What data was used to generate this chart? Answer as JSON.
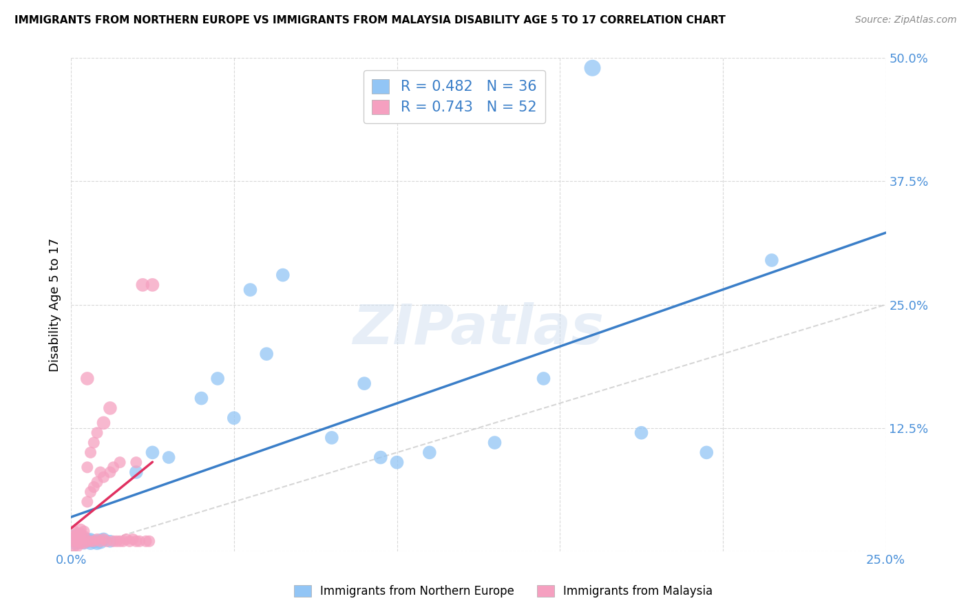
{
  "title": "IMMIGRANTS FROM NORTHERN EUROPE VS IMMIGRANTS FROM MALAYSIA DISABILITY AGE 5 TO 17 CORRELATION CHART",
  "source": "Source: ZipAtlas.com",
  "ylabel": "Disability Age 5 to 17",
  "r_blue": 0.482,
  "n_blue": 36,
  "r_pink": 0.743,
  "n_pink": 52,
  "blue_color": "#92C5F5",
  "pink_color": "#F5A0C0",
  "trendline_blue_color": "#3A7EC8",
  "trendline_pink_color": "#E03060",
  "xlim": [
    0.0,
    0.25
  ],
  "ylim": [
    0.0,
    0.5
  ],
  "blue_x": [
    0.001,
    0.001,
    0.002,
    0.002,
    0.003,
    0.003,
    0.004,
    0.005,
    0.005,
    0.006,
    0.006,
    0.007,
    0.008,
    0.009,
    0.01,
    0.012,
    0.02,
    0.025,
    0.03,
    0.04,
    0.045,
    0.05,
    0.055,
    0.06,
    0.065,
    0.08,
    0.09,
    0.095,
    0.1,
    0.11,
    0.13,
    0.145,
    0.16,
    0.175,
    0.195,
    0.215
  ],
  "blue_y": [
    0.01,
    0.015,
    0.008,
    0.012,
    0.01,
    0.015,
    0.008,
    0.012,
    0.01,
    0.008,
    0.012,
    0.01,
    0.008,
    0.01,
    0.012,
    0.01,
    0.08,
    0.1,
    0.095,
    0.155,
    0.175,
    0.135,
    0.265,
    0.2,
    0.28,
    0.115,
    0.17,
    0.095,
    0.09,
    0.1,
    0.11,
    0.175,
    0.49,
    0.12,
    0.1,
    0.295
  ],
  "blue_s": [
    300,
    200,
    180,
    220,
    180,
    200,
    180,
    180,
    200,
    200,
    180,
    220,
    200,
    260,
    200,
    180,
    200,
    200,
    180,
    200,
    200,
    200,
    200,
    200,
    200,
    200,
    200,
    200,
    200,
    200,
    200,
    200,
    300,
    200,
    200,
    200
  ],
  "pink_x": [
    0.001,
    0.001,
    0.001,
    0.001,
    0.002,
    0.002,
    0.002,
    0.002,
    0.003,
    0.003,
    0.003,
    0.003,
    0.004,
    0.004,
    0.004,
    0.005,
    0.005,
    0.005,
    0.005,
    0.006,
    0.006,
    0.006,
    0.007,
    0.007,
    0.007,
    0.008,
    0.008,
    0.008,
    0.009,
    0.009,
    0.01,
    0.01,
    0.01,
    0.011,
    0.012,
    0.012,
    0.013,
    0.013,
    0.014,
    0.015,
    0.015,
    0.016,
    0.017,
    0.018,
    0.019,
    0.02,
    0.02,
    0.021,
    0.022,
    0.023,
    0.024,
    0.025
  ],
  "pink_y": [
    0.005,
    0.01,
    0.015,
    0.02,
    0.005,
    0.01,
    0.015,
    0.018,
    0.008,
    0.012,
    0.018,
    0.022,
    0.008,
    0.015,
    0.02,
    0.01,
    0.05,
    0.085,
    0.175,
    0.01,
    0.06,
    0.1,
    0.01,
    0.065,
    0.11,
    0.012,
    0.07,
    0.12,
    0.01,
    0.08,
    0.012,
    0.075,
    0.13,
    0.01,
    0.08,
    0.145,
    0.01,
    0.085,
    0.01,
    0.01,
    0.09,
    0.01,
    0.012,
    0.01,
    0.012,
    0.01,
    0.09,
    0.01,
    0.27,
    0.01,
    0.01,
    0.27
  ],
  "pink_s": [
    150,
    150,
    150,
    150,
    150,
    150,
    150,
    150,
    150,
    150,
    150,
    150,
    150,
    150,
    150,
    150,
    150,
    150,
    200,
    150,
    150,
    150,
    150,
    150,
    150,
    150,
    150,
    150,
    150,
    150,
    150,
    150,
    200,
    150,
    150,
    200,
    150,
    150,
    150,
    150,
    150,
    150,
    150,
    150,
    150,
    150,
    150,
    150,
    200,
    150,
    150,
    200
  ]
}
